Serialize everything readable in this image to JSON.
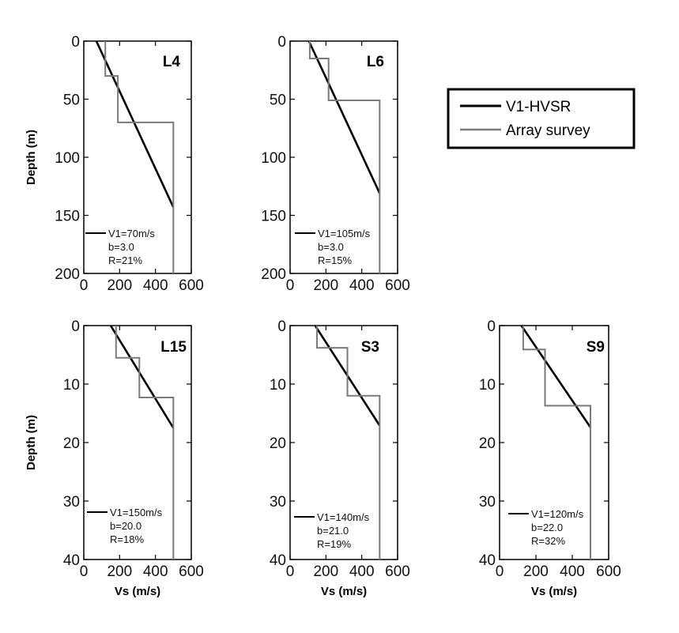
{
  "legend": {
    "placement": "top-right",
    "entries": [
      {
        "label": "V1-HVSR",
        "color": "#000000"
      },
      {
        "label": "Array survey",
        "color": "#7a7a7a"
      }
    ]
  },
  "colors": {
    "hvsr": "#000000",
    "array": "#7a7a7a"
  },
  "chart_data": [
    {
      "type": "line",
      "title": "L4",
      "xlabel": "",
      "ylabel": "Depth (m)",
      "xlim": [
        0,
        600
      ],
      "ylim": [
        0,
        200
      ],
      "y_inverted": true,
      "xticks": [
        "0",
        "200",
        "400",
        "600"
      ],
      "yticks": [
        "0",
        "50",
        "100",
        "150",
        "200"
      ],
      "series": [
        {
          "name": "V1-HVSR",
          "x": [
            70,
            500
          ],
          "y": [
            0,
            143
          ]
        },
        {
          "name": "Array survey",
          "x": [
            120,
            120,
            190,
            190,
            500,
            500
          ],
          "y": [
            0,
            30,
            30,
            70,
            70,
            200
          ]
        }
      ],
      "annotation": [
        "V1=70m/s",
        "b=3.0",
        "R=21%"
      ]
    },
    {
      "type": "line",
      "title": "L6",
      "xlabel": "",
      "ylabel": "",
      "xlim": [
        0,
        600
      ],
      "ylim": [
        0,
        200
      ],
      "y_inverted": true,
      "xticks": [
        "0",
        "200",
        "400",
        "600"
      ],
      "yticks": [
        "0",
        "50",
        "100",
        "150",
        "200"
      ],
      "series": [
        {
          "name": "V1-HVSR",
          "x": [
            105,
            500
          ],
          "y": [
            0,
            131
          ]
        },
        {
          "name": "Array survey",
          "x": [
            110,
            110,
            215,
            215,
            500,
            500
          ],
          "y": [
            0,
            15,
            15,
            51,
            51,
            200
          ]
        }
      ],
      "annotation": [
        "V1=105m/s",
        "b=3.0",
        "R=15%"
      ]
    },
    {
      "type": "line",
      "title": "L15",
      "xlabel": "Vs (m/s)",
      "ylabel": "Depth (m)",
      "xlim": [
        0,
        600
      ],
      "ylim": [
        0,
        40
      ],
      "y_inverted": true,
      "xticks": [
        "0",
        "200",
        "400",
        "600"
      ],
      "yticks": [
        "0",
        "10",
        "20",
        "30",
        "40"
      ],
      "series": [
        {
          "name": "V1-HVSR",
          "x": [
            150,
            500
          ],
          "y": [
            0,
            17.5
          ]
        },
        {
          "name": "Array survey",
          "x": [
            180,
            180,
            310,
            310,
            500,
            500
          ],
          "y": [
            0,
            5.5,
            5.5,
            12.3,
            12.3,
            40
          ]
        }
      ],
      "annotation": [
        "V1=150m/s",
        "b=20.0",
        "R=18%"
      ]
    },
    {
      "type": "line",
      "title": "S3",
      "xlabel": "Vs (m/s)",
      "ylabel": "",
      "xlim": [
        0,
        600
      ],
      "ylim": [
        0,
        40
      ],
      "y_inverted": true,
      "xticks": [
        "0",
        "200",
        "400",
        "600"
      ],
      "yticks": [
        "0",
        "10",
        "20",
        "30",
        "40"
      ],
      "series": [
        {
          "name": "V1-HVSR",
          "x": [
            140,
            500
          ],
          "y": [
            0,
            17.1
          ]
        },
        {
          "name": "Array survey",
          "x": [
            150,
            150,
            320,
            320,
            500,
            500
          ],
          "y": [
            0,
            3.8,
            3.8,
            12,
            12,
            40
          ]
        }
      ],
      "annotation": [
        "V1=140m/s",
        "b=21.0",
        "R=19%"
      ]
    },
    {
      "type": "line",
      "title": "S9",
      "xlabel": "Vs (m/s)",
      "ylabel": "",
      "xlim": [
        0,
        600
      ],
      "ylim": [
        0,
        40
      ],
      "y_inverted": true,
      "xticks": [
        "0",
        "200",
        "400",
        "600"
      ],
      "yticks": [
        "0",
        "10",
        "20",
        "30",
        "40"
      ],
      "series": [
        {
          "name": "V1-HVSR",
          "x": [
            120,
            500
          ],
          "y": [
            0,
            17.4
          ]
        },
        {
          "name": "Array survey",
          "x": [
            130,
            130,
            250,
            250,
            500,
            500
          ],
          "y": [
            0,
            4.1,
            4.1,
            13.7,
            13.7,
            40
          ]
        }
      ],
      "annotation": [
        "V1=120m/s",
        "b=22.0",
        "R=32%"
      ]
    }
  ]
}
